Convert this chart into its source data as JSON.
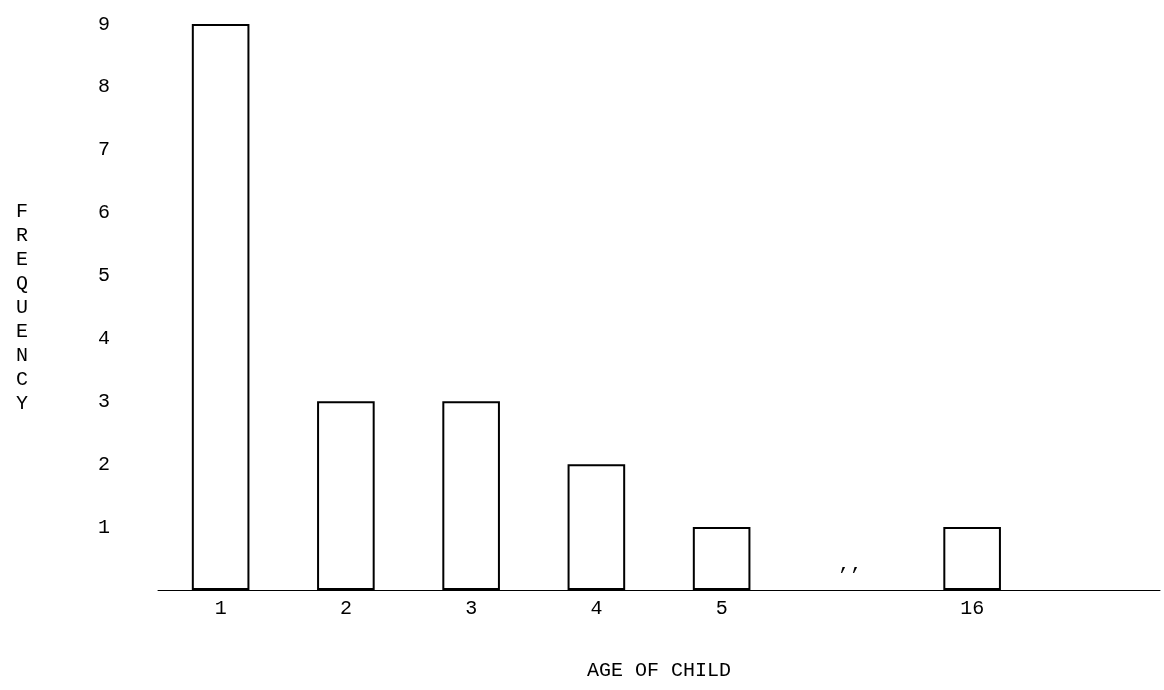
{
  "chart_data": {
    "type": "bar",
    "categories": [
      "1",
      "2",
      "3",
      "4",
      "5",
      null,
      "16",
      null
    ],
    "values": [
      9,
      3,
      3,
      2,
      1,
      null,
      1,
      null
    ],
    "color": "#ffffff",
    "xlabel": "AGE OF CHILD",
    "ylabel": "FREQUENCY",
    "ylim": [
      0,
      9
    ],
    "yticks": [
      1,
      2,
      3,
      4,
      5,
      6,
      7,
      8,
      9
    ],
    "annotations": [
      "’’"
    ],
    "grid": false
  }
}
